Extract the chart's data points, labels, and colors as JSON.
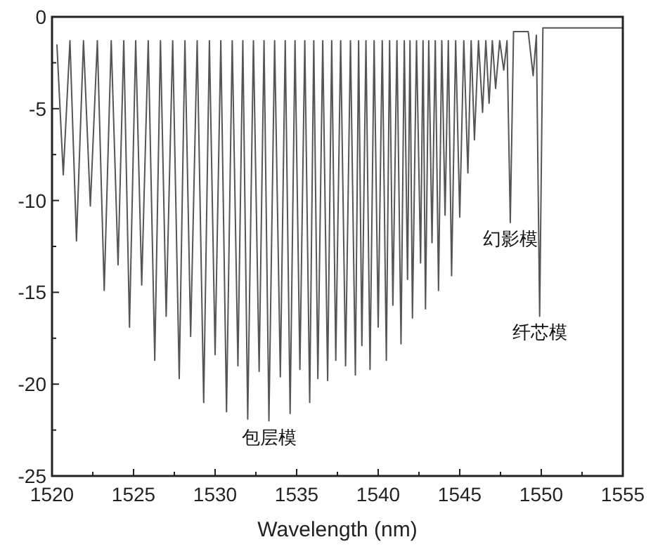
{
  "chart_data": {
    "type": "line",
    "xlabel": "Wavelength (nm)",
    "xlim": [
      1520,
      1555
    ],
    "xticks": [
      1520,
      {
        "value": 1522.5,
        "label": null
      },
      1525,
      {
        "value": 1527.5,
        "label": null
      },
      1530,
      {
        "value": 1532.5,
        "label": null
      },
      1535,
      {
        "value": 1537.5,
        "label": null
      },
      1540,
      {
        "value": 1542.5,
        "label": null
      },
      1545,
      {
        "value": 1547.5,
        "label": null
      },
      1550,
      {
        "value": 1552.5,
        "label": null
      },
      1555
    ],
    "ylim": [
      -25,
      0
    ],
    "yticks": [
      -25,
      {
        "value": -22.5,
        "label": null
      },
      -20,
      {
        "value": -17.5,
        "label": null
      },
      -15,
      {
        "value": -12.5,
        "label": null
      },
      -10,
      {
        "value": -7.5,
        "label": null
      },
      -5,
      {
        "value": -2.5,
        "label": null
      },
      0
    ],
    "grid": false,
    "marker": "none",
    "line_style": "solid",
    "annotations": [
      {
        "text": "包层模",
        "x": 1533.3,
        "y": -22.0
      },
      {
        "text": "幻影模",
        "x": 1548.1,
        "y": -11.2
      },
      {
        "text": "纤芯模",
        "x": 1549.9,
        "y": -16.3
      }
    ],
    "series": [
      {
        "color": "#555555",
        "x": [
          1520.3,
          1520.69,
          1521.1,
          1521.5,
          1521.93,
          1522.35,
          1522.78,
          1523.2,
          1523.63,
          1524.05,
          1524.4,
          1524.75,
          1525.13,
          1525.5,
          1525.9,
          1526.3,
          1526.65,
          1527.0,
          1527.4,
          1527.8,
          1528.15,
          1528.5,
          1528.9,
          1529.3,
          1529.65,
          1530.0,
          1530.35,
          1530.7,
          1531.05,
          1531.4,
          1531.7,
          1532.0,
          1532.35,
          1532.7,
          1533.0,
          1533.3,
          1533.65,
          1534.0,
          1534.3,
          1534.6,
          1534.9,
          1535.2,
          1535.5,
          1535.8,
          1536.05,
          1536.3,
          1536.6,
          1536.9,
          1537.15,
          1537.4,
          1537.7,
          1538.0,
          1538.3,
          1538.6,
          1538.8,
          1539.0,
          1539.25,
          1539.5,
          1539.75,
          1540.0,
          1540.25,
          1540.5,
          1540.7,
          1540.9,
          1541.15,
          1541.4,
          1541.6,
          1541.8,
          1541.95,
          1542.1,
          1542.35,
          1542.6,
          1542.75,
          1542.9,
          1543.1,
          1543.3,
          1543.5,
          1543.7,
          1543.9,
          1544.1,
          1544.3,
          1544.5,
          1544.75,
          1545.0,
          1545.25,
          1545.5,
          1545.7,
          1545.9,
          1546.15,
          1546.4,
          1546.6,
          1546.8,
          1547.0,
          1547.2,
          1547.45,
          1547.7,
          1547.9,
          1548.1,
          1548.3,
          1549.2,
          1549.5,
          1549.7,
          1549.9,
          1550.1,
          1555
        ],
        "values": [
          -1.5,
          -8.6,
          -1.3,
          -12.2,
          -1.3,
          -10.3,
          -1.3,
          -14.9,
          -1.3,
          -13.5,
          -1.3,
          -16.9,
          -1.3,
          -14.6,
          -1.3,
          -18.7,
          -1.3,
          -16.3,
          -1.3,
          -19.7,
          -1.3,
          -17.4,
          -1.3,
          -21.0,
          -1.3,
          -18.4,
          -1.3,
          -21.5,
          -1.3,
          -19.0,
          -1.3,
          -21.9,
          -1.3,
          -19.3,
          -1.3,
          -22.0,
          -1.3,
          -19.6,
          -1.3,
          -21.6,
          -1.3,
          -19.2,
          -1.3,
          -21.0,
          -1.3,
          -19.7,
          -1.3,
          -19.8,
          -1.3,
          -18.7,
          -1.3,
          -19.0,
          -1.3,
          -19.5,
          -1.3,
          -17.9,
          -1.3,
          -19.2,
          -1.3,
          -16.9,
          -1.3,
          -18.7,
          -1.3,
          -15.7,
          -1.3,
          -17.8,
          -1.3,
          -14.3,
          -1.3,
          -16.4,
          -1.3,
          -13.4,
          -1.3,
          -15.9,
          -1.3,
          -12.3,
          -1.3,
          -14.9,
          -1.3,
          -10.8,
          -1.3,
          -14.1,
          -1.3,
          -10.9,
          -1.3,
          -8.5,
          -1.3,
          -6.7,
          -1.3,
          -5.2,
          -1.3,
          -4.7,
          -1.3,
          -3.9,
          -1.3,
          -2.9,
          -1.3,
          -11.2,
          -0.8,
          -0.8,
          -3.2,
          -1.0,
          -16.3,
          -0.6,
          -0.6
        ]
      }
    ]
  }
}
